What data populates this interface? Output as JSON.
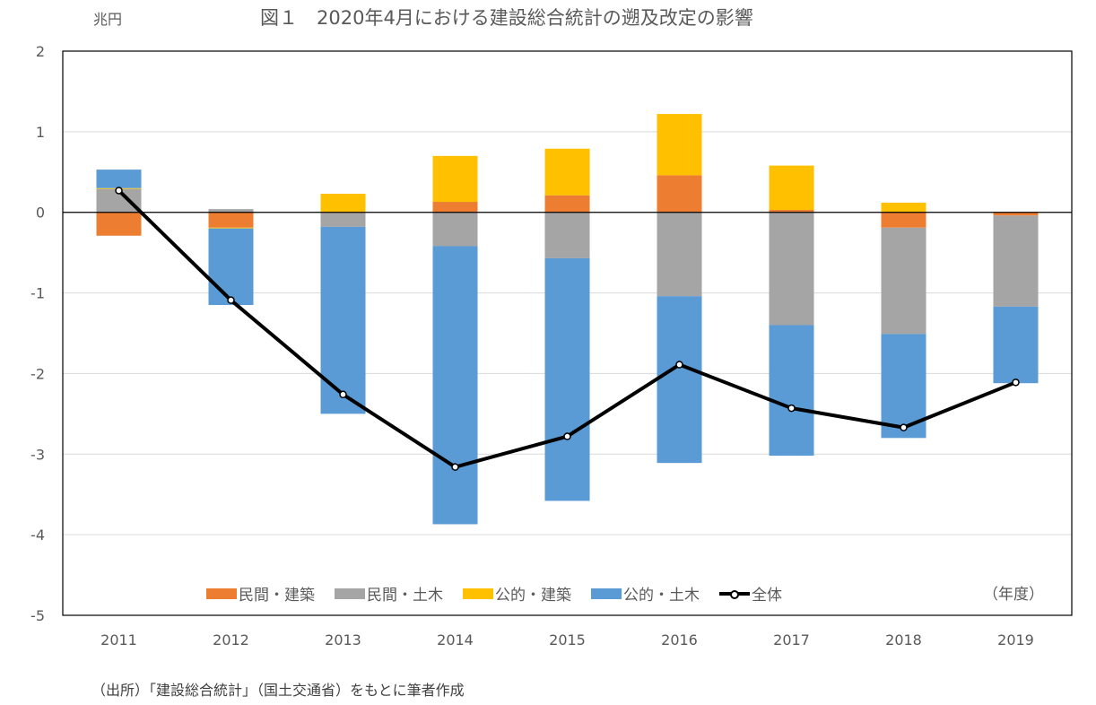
{
  "unit_label": "兆円",
  "title": "図１　2020年4月における建設総合統計の遡及改定の影響",
  "source": "（出所）「建設総合統計」（国土交通省）をもとに筆者作成",
  "fiscal_year_label": "（年度）",
  "chart_data": {
    "type": "bar",
    "stacked": true,
    "title": "図１　2020年4月における建設総合統計の遡及改定の影響",
    "xlabel": "（年度）",
    "ylabel": "兆円",
    "ylim": [
      -5,
      2
    ],
    "yticks": [
      2,
      1,
      0,
      -1,
      -2,
      -3,
      -4,
      -5
    ],
    "grid": true,
    "legend_position": "bottom-inside",
    "categories": [
      "2011",
      "2012",
      "2013",
      "2014",
      "2015",
      "2016",
      "2017",
      "2018",
      "2019"
    ],
    "series": [
      {
        "name": "民間・建築",
        "kind": "bar",
        "color": "#ED7D31",
        "values": [
          -0.29,
          -0.19,
          -0.01,
          0.13,
          0.21,
          0.46,
          0.03,
          -0.19,
          -0.04
        ]
      },
      {
        "name": "民間・土木",
        "kind": "bar",
        "color": "#A5A5A5",
        "values": [
          0.29,
          0.04,
          -0.17,
          -0.42,
          -0.57,
          -1.04,
          -1.4,
          -1.32,
          -1.13
        ]
      },
      {
        "name": "公的・建築",
        "kind": "bar",
        "color": "#FFC000",
        "values": [
          0.01,
          -0.01,
          0.23,
          0.57,
          0.58,
          0.76,
          0.55,
          0.12,
          0.0
        ]
      },
      {
        "name": "公的・土木",
        "kind": "bar",
        "color": "#5B9BD5",
        "values": [
          0.23,
          -0.95,
          -2.32,
          -3.45,
          -3.01,
          -2.07,
          -1.62,
          -1.29,
          -0.95
        ]
      },
      {
        "name": "全体",
        "kind": "line",
        "color": "#000000",
        "values": [
          0.27,
          -1.09,
          -2.26,
          -3.16,
          -2.78,
          -1.89,
          -2.43,
          -2.67,
          -2.11
        ]
      }
    ]
  }
}
